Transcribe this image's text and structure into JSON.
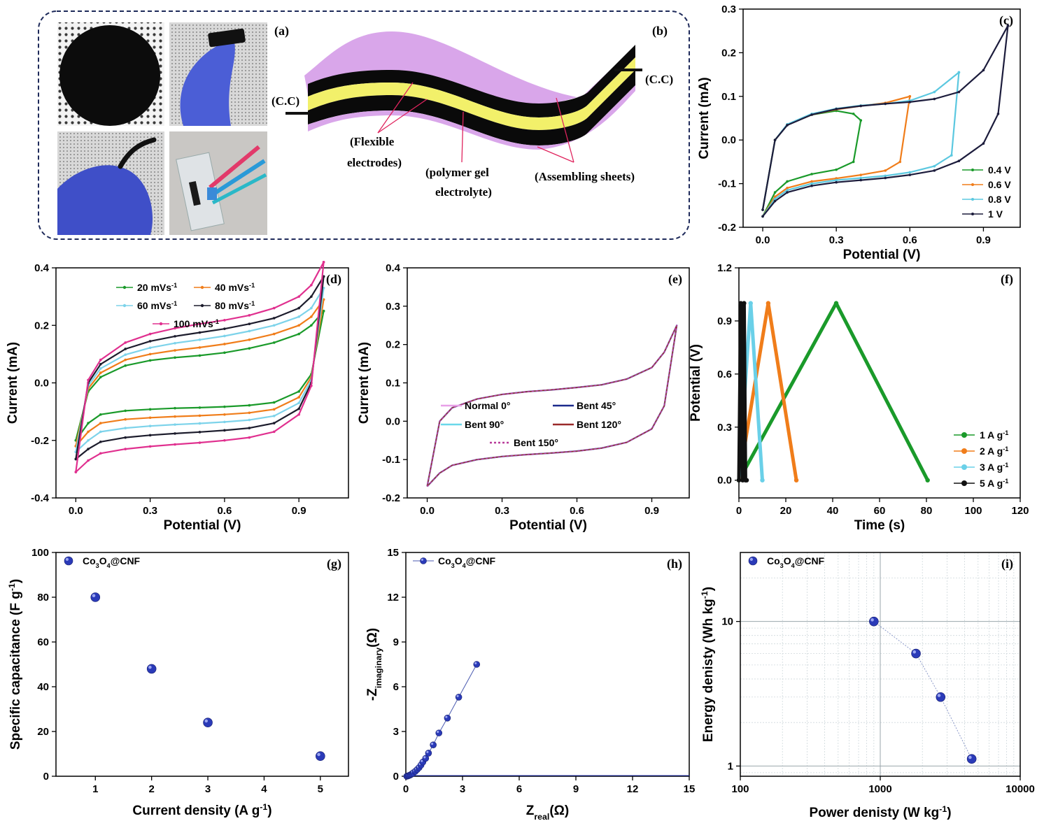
{
  "panel_a": {
    "tag": "(a)"
  },
  "panel_b": {
    "tag": "(b)",
    "labels": {
      "cc_left": "(C.C)",
      "cc_right": "(C.C)",
      "flex_1": "(Flexible",
      "flex_2": "electrodes)",
      "gel_1": "(polymer gel",
      "gel_2": "electrolyte)",
      "assembling": "(Assembling sheets)"
    },
    "colors": {
      "sheet": "#d9a6ea",
      "electrode": "#0a0a0a",
      "electrolyte": "#f2f06a",
      "pointer": "#e0245e"
    }
  },
  "chart_data": [
    {
      "id": "c",
      "tag": "(c)",
      "type": "line",
      "xlabel": "Potential (V)",
      "ylabel": "Current (mA)",
      "xlim": [
        -0.08,
        1.05
      ],
      "ylim": [
        -0.2,
        0.3
      ],
      "xticks": [
        0.0,
        0.3,
        0.6,
        0.9
      ],
      "xticklabels": [
        "0.0",
        "0.3",
        "0.6",
        "0.9"
      ],
      "yticks": [
        -0.2,
        -0.1,
        0.0,
        0.1,
        0.2,
        0.3
      ],
      "yticklabels": [
        "-0.2",
        "-0.1",
        "0.0",
        "0.1",
        "0.2",
        "0.3"
      ],
      "legend": "bottom-right",
      "grid": false,
      "series": [
        {
          "name": "0.4 V",
          "color": "#1a9a2a",
          "x": [
            0.0,
            0.05,
            0.1,
            0.2,
            0.3,
            0.37,
            0.4,
            0.4,
            0.37,
            0.3,
            0.2,
            0.1,
            0.05,
            0.0
          ],
          "y": [
            -0.175,
            -0.12,
            -0.095,
            -0.078,
            -0.068,
            -0.05,
            0.045,
            0.045,
            0.06,
            0.067,
            0.058,
            0.035,
            0.0,
            -0.16
          ]
        },
        {
          "name": "0.6 V",
          "color": "#f07d1a",
          "x": [
            0.0,
            0.05,
            0.1,
            0.2,
            0.3,
            0.4,
            0.5,
            0.56,
            0.6,
            0.6,
            0.5,
            0.4,
            0.3,
            0.2,
            0.1,
            0.05,
            0.0
          ],
          "y": [
            -0.175,
            -0.13,
            -0.11,
            -0.095,
            -0.088,
            -0.08,
            -0.07,
            -0.05,
            0.1,
            0.1,
            0.085,
            0.078,
            0.07,
            0.058,
            0.035,
            0.0,
            -0.16
          ]
        },
        {
          "name": "0.8 V",
          "color": "#5bc8e0",
          "x": [
            0.0,
            0.05,
            0.1,
            0.2,
            0.3,
            0.4,
            0.5,
            0.6,
            0.7,
            0.77,
            0.8,
            0.8,
            0.7,
            0.6,
            0.5,
            0.4,
            0.3,
            0.2,
            0.1,
            0.05,
            0.0
          ],
          "y": [
            -0.175,
            -0.135,
            -0.115,
            -0.1,
            -0.092,
            -0.087,
            -0.082,
            -0.074,
            -0.06,
            -0.035,
            0.155,
            0.155,
            0.11,
            0.09,
            0.083,
            0.079,
            0.072,
            0.06,
            0.036,
            0.0,
            -0.16
          ]
        },
        {
          "name": "1   V",
          "color": "#1c1c3c",
          "x": [
            0.0,
            0.05,
            0.1,
            0.2,
            0.3,
            0.4,
            0.5,
            0.6,
            0.7,
            0.8,
            0.9,
            0.96,
            1.0,
            1.0,
            0.9,
            0.8,
            0.7,
            0.6,
            0.5,
            0.4,
            0.3,
            0.2,
            0.1,
            0.05,
            0.0
          ],
          "y": [
            -0.175,
            -0.14,
            -0.12,
            -0.105,
            -0.097,
            -0.092,
            -0.087,
            -0.08,
            -0.07,
            -0.048,
            -0.008,
            0.06,
            0.262,
            0.262,
            0.16,
            0.11,
            0.094,
            0.087,
            0.083,
            0.078,
            0.071,
            0.058,
            0.034,
            0.0,
            -0.16
          ]
        }
      ]
    },
    {
      "id": "d",
      "tag": "(d)",
      "type": "line",
      "xlabel": "Potential (V)",
      "ylabel": "Current (mA)",
      "xlim": [
        -0.08,
        1.1
      ],
      "ylim": [
        -0.4,
        0.4
      ],
      "xticks": [
        0.0,
        0.3,
        0.6,
        0.9
      ],
      "xticklabels": [
        "0.0",
        "0.3",
        "0.6",
        "0.9"
      ],
      "yticks": [
        -0.4,
        -0.2,
        0.0,
        0.2,
        0.4
      ],
      "yticklabels": [
        "-0.4",
        "-0.2",
        "0.0",
        "0.2",
        "0.4"
      ],
      "legend": "top-center",
      "grid": false,
      "series": [
        {
          "name": "20 mVs",
          "color": "#1a9a2a",
          "x": [
            0.0,
            0.05,
            0.1,
            0.2,
            0.3,
            0.4,
            0.5,
            0.6,
            0.7,
            0.8,
            0.9,
            0.95,
            1.0,
            1.0,
            0.95,
            0.9,
            0.8,
            0.7,
            0.6,
            0.5,
            0.4,
            0.3,
            0.2,
            0.1,
            0.05,
            0.0
          ],
          "y": [
            -0.2,
            -0.14,
            -0.11,
            -0.097,
            -0.092,
            -0.088,
            -0.086,
            -0.083,
            -0.078,
            -0.068,
            -0.03,
            0.03,
            0.25,
            0.25,
            0.2,
            0.17,
            0.14,
            0.12,
            0.105,
            0.095,
            0.088,
            0.078,
            0.06,
            0.02,
            -0.03,
            -0.2
          ]
        },
        {
          "name": "40 mVs",
          "color": "#f07d1a",
          "x": [
            0.0,
            0.05,
            0.1,
            0.2,
            0.3,
            0.4,
            0.5,
            0.6,
            0.7,
            0.8,
            0.9,
            0.95,
            1.0,
            1.0,
            0.95,
            0.9,
            0.8,
            0.7,
            0.6,
            0.5,
            0.4,
            0.3,
            0.2,
            0.1,
            0.05,
            0.0
          ],
          "y": [
            -0.22,
            -0.17,
            -0.14,
            -0.127,
            -0.121,
            -0.117,
            -0.114,
            -0.11,
            -0.104,
            -0.092,
            -0.05,
            0.02,
            0.29,
            0.29,
            0.23,
            0.2,
            0.17,
            0.15,
            0.135,
            0.123,
            0.113,
            0.1,
            0.08,
            0.035,
            -0.02,
            -0.22
          ]
        },
        {
          "name": "60 mVs",
          "color": "#7dd3ea",
          "x": [
            0.0,
            0.05,
            0.1,
            0.2,
            0.3,
            0.4,
            0.5,
            0.6,
            0.7,
            0.8,
            0.9,
            0.95,
            1.0,
            1.0,
            0.95,
            0.9,
            0.8,
            0.7,
            0.6,
            0.5,
            0.4,
            0.3,
            0.2,
            0.1,
            0.05,
            0.0
          ],
          "y": [
            -0.24,
            -0.2,
            -0.17,
            -0.157,
            -0.15,
            -0.145,
            -0.141,
            -0.136,
            -0.129,
            -0.115,
            -0.07,
            0.01,
            0.33,
            0.33,
            0.26,
            0.23,
            0.2,
            0.18,
            0.163,
            0.15,
            0.138,
            0.122,
            0.098,
            0.05,
            -0.01,
            -0.24
          ]
        },
        {
          "name": "80 mVs",
          "color": "#1c1c2c",
          "x": [
            0.0,
            0.05,
            0.1,
            0.2,
            0.3,
            0.4,
            0.5,
            0.6,
            0.7,
            0.8,
            0.9,
            0.95,
            1.0,
            1.0,
            0.95,
            0.9,
            0.8,
            0.7,
            0.6,
            0.5,
            0.4,
            0.3,
            0.2,
            0.1,
            0.05,
            0.0
          ],
          "y": [
            -0.265,
            -0.23,
            -0.205,
            -0.19,
            -0.182,
            -0.176,
            -0.171,
            -0.165,
            -0.157,
            -0.14,
            -0.09,
            0.0,
            0.37,
            0.37,
            0.3,
            0.26,
            0.225,
            0.205,
            0.188,
            0.175,
            0.162,
            0.145,
            0.118,
            0.065,
            0.0,
            -0.265
          ]
        },
        {
          "name": "100 mVs",
          "color": "#e0308f",
          "x": [
            0.0,
            0.05,
            0.1,
            0.2,
            0.3,
            0.4,
            0.5,
            0.6,
            0.7,
            0.8,
            0.9,
            0.95,
            1.0,
            1.0,
            0.95,
            0.9,
            0.8,
            0.7,
            0.6,
            0.5,
            0.4,
            0.3,
            0.2,
            0.1,
            0.05,
            0.0
          ],
          "y": [
            -0.31,
            -0.27,
            -0.245,
            -0.23,
            -0.221,
            -0.214,
            -0.208,
            -0.2,
            -0.19,
            -0.17,
            -0.11,
            -0.01,
            0.42,
            0.42,
            0.34,
            0.3,
            0.26,
            0.235,
            0.218,
            0.205,
            0.19,
            0.17,
            0.14,
            0.08,
            0.01,
            -0.31
          ]
        }
      ]
    },
    {
      "id": "e",
      "tag": "(e)",
      "type": "line",
      "xlabel": "Potential (V)",
      "ylabel": "Current (mA)",
      "xlim": [
        -0.08,
        1.05
      ],
      "ylim": [
        -0.2,
        0.4
      ],
      "xticks": [
        0.0,
        0.3,
        0.6,
        0.9
      ],
      "xticklabels": [
        "0.0",
        "0.3",
        "0.6",
        "0.9"
      ],
      "yticks": [
        -0.2,
        -0.1,
        0.0,
        0.1,
        0.2,
        0.3,
        0.4
      ],
      "yticklabels": [
        "-0.2",
        "-0.1",
        "0.0",
        "0.1",
        "0.2",
        "0.3",
        "0.4"
      ],
      "legend": "center",
      "grid": false,
      "series": [
        {
          "name": "Normal 0°",
          "color": "#e8a0e8",
          "dash": false
        },
        {
          "name": "Bent 45°",
          "color": "#1c2a8c",
          "dash": false
        },
        {
          "name": "Bent 90°",
          "color": "#6ad8ea",
          "dash": false
        },
        {
          "name": "Bent 120°",
          "color": "#9a2a2a",
          "dash": false
        },
        {
          "name": "Bent 150°",
          "color": "#b83a9a",
          "dash": true
        }
      ],
      "shared_x": [
        0.0,
        0.05,
        0.1,
        0.2,
        0.3,
        0.4,
        0.5,
        0.6,
        0.7,
        0.8,
        0.9,
        0.95,
        1.0,
        1.0,
        0.95,
        0.9,
        0.8,
        0.7,
        0.6,
        0.5,
        0.4,
        0.3,
        0.2,
        0.1,
        0.05,
        0.0
      ],
      "shared_y": [
        -0.17,
        -0.135,
        -0.115,
        -0.1,
        -0.092,
        -0.087,
        -0.083,
        -0.078,
        -0.07,
        -0.055,
        -0.02,
        0.04,
        0.25,
        0.25,
        0.18,
        0.14,
        0.11,
        0.095,
        0.088,
        0.082,
        0.077,
        0.07,
        0.058,
        0.035,
        0.0,
        -0.17
      ]
    },
    {
      "id": "f",
      "tag": "(f)",
      "type": "line",
      "xlabel": "Time (s)",
      "ylabel": "Potential (V)",
      "xlim": [
        0,
        120
      ],
      "ylim": [
        -0.1,
        1.2
      ],
      "xticks": [
        0,
        20,
        40,
        60,
        80,
        100,
        120
      ],
      "xticklabels": [
        "0",
        "20",
        "40",
        "60",
        "80",
        "100",
        "120"
      ],
      "yticks": [
        0.0,
        0.3,
        0.6,
        0.9,
        1.2
      ],
      "yticklabels": [
        "0.0",
        "0.3",
        "0.6",
        "0.9",
        "1.2"
      ],
      "legend": "bottom-right",
      "grid": false,
      "series": [
        {
          "name": "1 A g",
          "color": "#1a9a2a",
          "x": [
            0,
            41.5,
            80.5
          ],
          "y": [
            0.0,
            1.0,
            0.0
          ]
        },
        {
          "name": "2 A g",
          "color": "#f07d1a",
          "x": [
            0,
            12.5,
            24.5
          ],
          "y": [
            0.0,
            1.0,
            0.0
          ]
        },
        {
          "name": "3 A g",
          "color": "#6ad0e8",
          "x": [
            0,
            5,
            10
          ],
          "y": [
            0.0,
            1.0,
            0.0
          ]
        },
        {
          "name": "5 A g",
          "color": "#111111",
          "x": [
            0,
            0.8,
            1.6,
            2.2,
            2.8,
            3.3
          ],
          "y": [
            0.0,
            1.0,
            0.0,
            1.0,
            0.0,
            0.0
          ]
        }
      ]
    },
    {
      "id": "g",
      "tag": "(g)",
      "type": "scatter",
      "xlabel": "Current density (A g",
      "ylabel": "Specific capacitance (F g",
      "xlim": [
        0.3,
        5.5
      ],
      "ylim": [
        0,
        100
      ],
      "xticks": [
        1,
        2,
        3,
        4,
        5
      ],
      "xticklabels": [
        "1",
        "2",
        "3",
        "4",
        "5"
      ],
      "yticks": [
        0,
        20,
        40,
        60,
        80,
        100
      ],
      "yticklabels": [
        "0",
        "20",
        "40",
        "60",
        "80",
        "100"
      ],
      "legend": "top-left",
      "grid": false,
      "series": [
        {
          "name": "Co3O4@CNF",
          "color": "#2a3ab8",
          "x": [
            1,
            2,
            3,
            5
          ],
          "y": [
            80,
            48,
            24,
            9
          ]
        }
      ]
    },
    {
      "id": "h",
      "tag": "(h)",
      "type": "line",
      "xlabel": "Z",
      "ylabel": "-Z",
      "xlim": [
        0,
        15
      ],
      "ylim": [
        0,
        15
      ],
      "xticks": [
        0,
        3,
        6,
        9,
        12,
        15
      ],
      "xticklabels": [
        "0",
        "3",
        "6",
        "9",
        "12",
        "15"
      ],
      "yticks": [
        0,
        3,
        6,
        9,
        12,
        15
      ],
      "yticklabels": [
        "0",
        "3",
        "6",
        "9",
        "12",
        "15"
      ],
      "legend": "top-left",
      "grid": false,
      "series": [
        {
          "name": "Co3O4@CNF",
          "color": "#2a3ab8",
          "x": [
            0.05,
            0.1,
            0.15,
            0.2,
            0.25,
            0.3,
            0.35,
            0.4,
            0.5,
            0.6,
            0.7,
            0.8,
            0.9,
            1.05,
            1.2,
            1.45,
            1.75,
            2.2,
            2.8,
            3.75
          ],
          "y": [
            0.0,
            0.02,
            0.04,
            0.07,
            0.1,
            0.14,
            0.18,
            0.24,
            0.33,
            0.45,
            0.58,
            0.75,
            0.95,
            1.2,
            1.55,
            2.1,
            2.9,
            3.9,
            5.3,
            7.5
          ]
        }
      ]
    },
    {
      "id": "i",
      "tag": "(i)",
      "type": "scatter",
      "xlabel": "Power denisty (W kg",
      "ylabel": "Energy denisty (Wh kg",
      "xscale": "log",
      "yscale": "log",
      "xlim": [
        100,
        10000
      ],
      "ylim": [
        0.85,
        30
      ],
      "xticks": [
        100,
        1000,
        10000
      ],
      "xticklabels": [
        "100",
        "1000",
        "10000"
      ],
      "yticks": [
        1,
        10
      ],
      "yticklabels": [
        "1",
        "10"
      ],
      "legend": "top-left",
      "grid": true,
      "series": [
        {
          "name": "Co3O4@CNF",
          "color": "#2a3ab8",
          "x": [
            900,
            1800,
            2700,
            4500
          ],
          "y": [
            10,
            6,
            3,
            1.12
          ]
        }
      ]
    }
  ],
  "legends": {
    "c": [
      "0.4 V",
      "0.6 V",
      "0.8 V",
      "1   V"
    ],
    "d_units": [
      "20 mVs",
      "40 mVs",
      "60 mVs",
      "80 mVs",
      "100 mVs"
    ],
    "d_sup": "-1",
    "e": [
      "Normal 0°",
      "Bent 45°",
      "Bent 90°",
      "Bent 120°",
      "Bent 150°"
    ],
    "f": [
      "1 A g",
      "2 A g",
      "3 A g",
      "5 A g"
    ],
    "f_sup": "-1",
    "co_base": "Co",
    "co_sub1": "3",
    "co_mid": "O",
    "co_sub2": "4",
    "co_tail": "@CNF",
    "g_x_sup": "-1",
    "g_x_close": ")",
    "g_y_sup": "-1",
    "g_y_close": ")",
    "h_x_sub": "real",
    "h_x_tail": "(Ω)",
    "h_y_sub": "imaginary",
    "h_y_tail": "(Ω)",
    "i_x_sup": "-1",
    "i_x_close": ")",
    "i_y_sup": "-1",
    "i_y_close": ")"
  }
}
